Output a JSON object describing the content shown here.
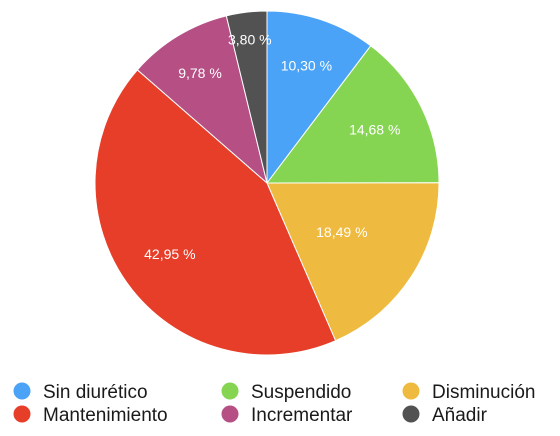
{
  "chart_data": {
    "type": "pie",
    "categories": [
      "Sin diurético",
      "Suspendido",
      "Disminución",
      "Mantenimiento",
      "Incrementar",
      "Añadir"
    ],
    "values": [
      10.3,
      14.68,
      18.49,
      42.95,
      9.78,
      3.8
    ],
    "value_labels": [
      "10,30 %",
      "14,68 %",
      "18,49 %",
      "42,95 %",
      "9,78 %",
      "3,80 %"
    ],
    "colors": [
      "#4aa3f7",
      "#86d552",
      "#eeba3f",
      "#e63e28",
      "#b54f84",
      "#525252"
    ],
    "title": "",
    "legend_position": "bottom"
  }
}
